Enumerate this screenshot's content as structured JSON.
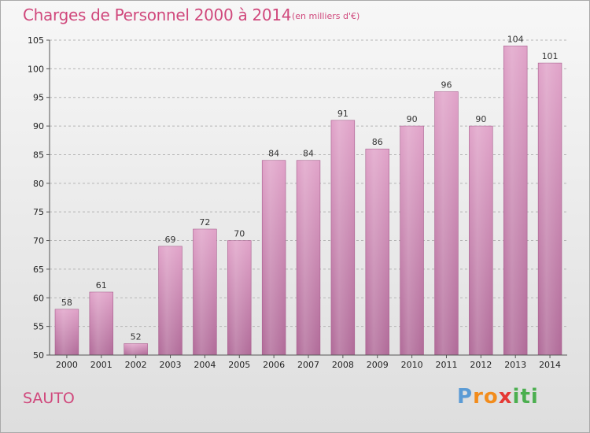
{
  "header": {
    "title": "Charges de Personnel 2000 à 2014",
    "subtitle": "(en milliers d'€)"
  },
  "footer": {
    "commune": "SAUTO",
    "logo": {
      "letters": [
        "P",
        "r",
        "o",
        "x",
        "i",
        "t",
        "i"
      ],
      "colors": [
        "#5b9bd5",
        "#f28c1c",
        "#f28c1c",
        "#e53935",
        "#4caf50",
        "#4caf50",
        "#4caf50"
      ]
    }
  },
  "chart_data": {
    "type": "bar",
    "title": "Charges de Personnel 2000 à 2014",
    "subtitle": "(en milliers d'€)",
    "categories": [
      "2000",
      "2001",
      "2002",
      "2003",
      "2004",
      "2005",
      "2006",
      "2007",
      "2008",
      "2009",
      "2010",
      "2011",
      "2012",
      "2013",
      "2014"
    ],
    "values": [
      58,
      61,
      52,
      69,
      72,
      70,
      84,
      84,
      91,
      86,
      90,
      96,
      90,
      104,
      101
    ],
    "ylim": [
      50,
      105
    ],
    "yticks": [
      50,
      55,
      60,
      65,
      70,
      75,
      80,
      85,
      90,
      95,
      100,
      105
    ],
    "grid": true,
    "bar_color": "#e0a2c8",
    "bar_color_dark": "#b06a98"
  }
}
